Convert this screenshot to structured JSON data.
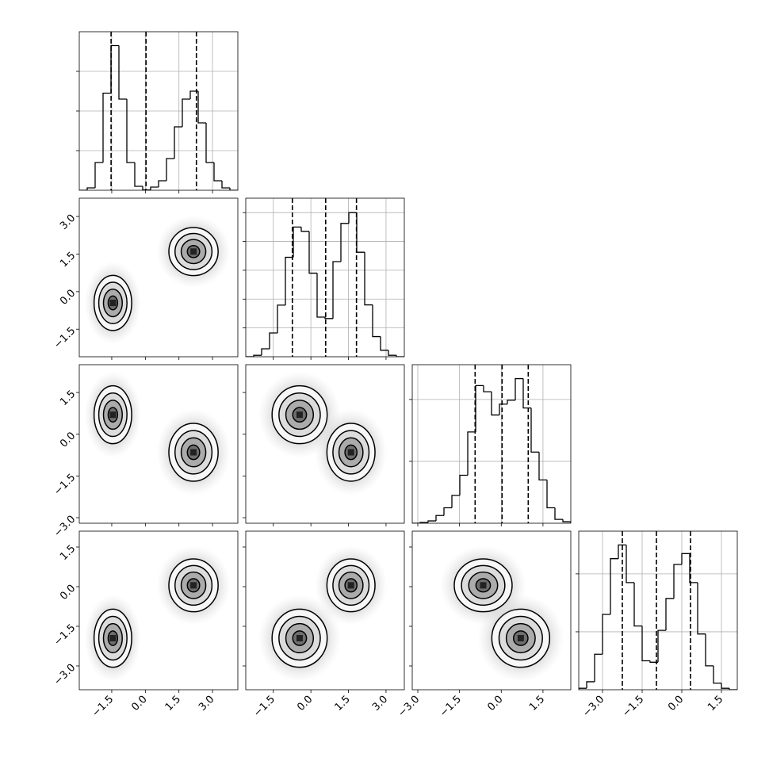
{
  "chart_data": [
    {
      "type": "histogram",
      "bins": [
        -2.95,
        -2.596,
        -2.242,
        -1.888,
        -1.534,
        -1.18,
        -0.826,
        -0.472,
        -0.118,
        0.236,
        0.59,
        0.944,
        1.298,
        1.652,
        2.006,
        2.36,
        2.714,
        3.068,
        3.422,
        3.776,
        4.13
      ],
      "values": [
        0,
        12,
        140,
        490,
        730,
        460,
        140,
        20,
        2,
        16,
        48,
        160,
        320,
        460,
        500,
        340,
        140,
        48,
        12,
        0
      ],
      "quantiles": [
        -1.53,
        0.03,
        2.28
      ],
      "xlim": [
        -2.95,
        4.13
      ],
      "xticks": [
        -1.5,
        0,
        1.5,
        3
      ],
      "ylim": [
        0,
        800
      ],
      "yticks": [
        200,
        400,
        600
      ],
      "grid": true,
      "color": "#000000"
    },
    {
      "type": "contour",
      "xlim": [
        -2.95,
        4.13
      ],
      "ylim": [
        -2.6,
        3.73
      ],
      "xticks": [
        -1.5,
        0,
        1.5,
        3
      ],
      "yticks": [
        {
          "value": -1.5,
          "label": "−1.5"
        },
        {
          "value": 0,
          "label": "0.0"
        },
        {
          "value": 1.5,
          "label": "1.5"
        },
        {
          "value": 3,
          "label": "3.0"
        }
      ],
      "levels": [
        2,
        1.5,
        1,
        0.5
      ],
      "clusters": [
        {
          "x": -1.45,
          "sx": 0.42,
          "y": -0.45,
          "sy": 0.55
        },
        {
          "x": 2.15,
          "sx": 0.55,
          "y": 1.6,
          "sy": 0.48
        }
      ],
      "grid": false
    },
    {
      "type": "histogram",
      "bins": [
        -2.6,
        -2.2835,
        -1.967,
        -1.6505,
        -1.334,
        -1.0175,
        -0.701,
        -0.3845,
        -0.068,
        0.2485,
        0.565,
        0.8815,
        1.198,
        1.5145,
        1.831,
        2.1475,
        2.464,
        2.7805,
        3.097,
        3.4135,
        3.73
      ],
      "values": [
        0,
        10,
        55,
        165,
        358,
        690,
        900,
        870,
        580,
        275,
        265,
        660,
        925,
        1000,
        725,
        360,
        140,
        45,
        10,
        0
      ],
      "quantiles": [
        -0.74,
        0.59,
        1.82
      ],
      "xlim": [
        -2.6,
        3.73
      ],
      "xticks": [
        -1.5,
        0,
        1.5,
        3
      ],
      "ylim": [
        0,
        1100
      ],
      "yticks": [
        200,
        400,
        600,
        800,
        1000
      ],
      "grid": true,
      "color": "#000000"
    },
    {
      "type": "contour",
      "xlim": [
        -2.95,
        4.13
      ],
      "ylim": [
        -3.2,
        2.5
      ],
      "xticks": [
        -1.5,
        0,
        1.5,
        3
      ],
      "yticks": [
        {
          "value": -3,
          "label": "−3.0"
        },
        {
          "value": -1.5,
          "label": "−1.5"
        },
        {
          "value": 0,
          "label": "0.0"
        },
        {
          "value": 1.5,
          "label": "1.5"
        }
      ],
      "levels": [
        2,
        1.5,
        1,
        0.5
      ],
      "clusters": [
        {
          "x": -1.45,
          "sx": 0.42,
          "y": 0.7,
          "sy": 0.52
        },
        {
          "x": 2.15,
          "sx": 0.55,
          "y": -0.65,
          "sy": 0.52
        }
      ],
      "grid": false
    },
    {
      "type": "contour",
      "xlim": [
        -2.6,
        3.73
      ],
      "ylim": [
        -3.2,
        2.5
      ],
      "xticks": [
        -1.5,
        0,
        1.5,
        3
      ],
      "yticks": [
        -3,
        -1.5,
        0,
        1.5
      ],
      "levels": [
        2,
        1.5,
        1,
        0.5
      ],
      "clusters": [
        {
          "x": -0.45,
          "sx": 0.55,
          "y": 0.7,
          "sy": 0.52
        },
        {
          "x": 1.6,
          "sx": 0.48,
          "y": -0.65,
          "sy": 0.52
        }
      ],
      "grid": false
    },
    {
      "type": "histogram",
      "bins": [
        -3.2,
        -2.915,
        -2.63,
        -2.345,
        -2.06,
        -1.775,
        -1.49,
        -1.205,
        -0.92,
        -0.635,
        -0.35,
        -0.065,
        0.22,
        0.505,
        0.79,
        1.075,
        1.36,
        1.645,
        1.93,
        2.215,
        2.5
      ],
      "values": [
        0,
        5,
        15,
        50,
        100,
        180,
        310,
        590,
        890,
        850,
        700,
        770,
        795,
        935,
        745,
        460,
        280,
        100,
        25,
        10
      ],
      "quantiles": [
        -0.94,
        0.03,
        0.97
      ],
      "xlim": [
        -3.2,
        2.5
      ],
      "xticks": [
        -3,
        -1.5,
        0,
        1.5
      ],
      "ylim": [
        0,
        1025
      ],
      "yticks": [
        400,
        800
      ],
      "grid": true,
      "color": "#000000"
    },
    {
      "type": "contour",
      "xlim": [
        -2.95,
        4.13
      ],
      "ylim": [
        -3.9,
        2.1
      ],
      "xticks": [
        {
          "value": -1.5,
          "label": "−1.5"
        },
        {
          "value": 0,
          "label": "0.0"
        },
        {
          "value": 1.5,
          "label": "1.5"
        },
        {
          "value": 3,
          "label": "3.0"
        }
      ],
      "yticks": [
        {
          "value": -3,
          "label": "−3.0"
        },
        {
          "value": -1.5,
          "label": "−1.5"
        },
        {
          "value": 0,
          "label": "0.0"
        },
        {
          "value": 1.5,
          "label": "1.5"
        }
      ],
      "levels": [
        2,
        1.5,
        1,
        0.5
      ],
      "clusters": [
        {
          "x": -1.45,
          "sx": 0.42,
          "y": -1.95,
          "sy": 0.55
        },
        {
          "x": 2.15,
          "sx": 0.55,
          "y": 0.05,
          "sy": 0.5
        }
      ],
      "grid": false
    },
    {
      "type": "contour",
      "xlim": [
        -2.6,
        3.73
      ],
      "ylim": [
        -3.9,
        2.1
      ],
      "xticks": [
        {
          "value": -1.5,
          "label": "−1.5"
        },
        {
          "value": 0,
          "label": "0.0"
        },
        {
          "value": 1.5,
          "label": "1.5"
        },
        {
          "value": 3,
          "label": "3.0"
        }
      ],
      "yticks": [
        -3,
        -1.5,
        0,
        1.5
      ],
      "levels": [
        2,
        1.5,
        1,
        0.5
      ],
      "clusters": [
        {
          "x": -0.45,
          "sx": 0.55,
          "y": -1.95,
          "sy": 0.55
        },
        {
          "x": 1.6,
          "sx": 0.48,
          "y": 0.05,
          "sy": 0.5
        }
      ],
      "grid": false
    },
    {
      "type": "contour",
      "xlim": [
        -3.2,
        2.5
      ],
      "ylim": [
        -3.9,
        2.1
      ],
      "xticks": [
        {
          "value": -3,
          "label": "−3.0"
        },
        {
          "value": -1.5,
          "label": "−1.5"
        },
        {
          "value": 0,
          "label": "0.0"
        },
        {
          "value": 1.5,
          "label": "1.5"
        }
      ],
      "yticks": [
        -3,
        -1.5,
        0,
        1.5
      ],
      "levels": [
        2,
        1.5,
        1,
        0.5
      ],
      "clusters": [
        {
          "x": 0.7,
          "sx": 0.52,
          "y": -1.95,
          "sy": 0.55
        },
        {
          "x": -0.65,
          "sx": 0.52,
          "y": 0.05,
          "sy": 0.5
        }
      ],
      "grid": false
    },
    {
      "type": "histogram",
      "bins": [
        -3.9,
        -3.6,
        -3.3,
        -3.0,
        -2.7,
        -2.4,
        -2.1,
        -1.8,
        -1.5,
        -1.2,
        -0.9,
        -0.6,
        -0.3,
        0.0,
        0.3,
        0.6,
        0.9,
        1.2,
        1.5,
        1.8,
        2.1
      ],
      "values": [
        10,
        55,
        245,
        520,
        905,
        1000,
        740,
        440,
        200,
        190,
        410,
        630,
        865,
        940,
        740,
        385,
        165,
        45,
        10,
        0
      ],
      "quantiles": [
        -2.25,
        -0.96,
        0.33
      ],
      "xlim": [
        -3.9,
        2.1
      ],
      "xticks": [
        {
          "value": -3,
          "label": "−3.0"
        },
        {
          "value": -1.5,
          "label": "−1.5"
        },
        {
          "value": 0,
          "label": "0.0"
        },
        {
          "value": 1.5,
          "label": "1.5"
        }
      ],
      "ylim": [
        0,
        1095
      ],
      "yticks": [
        400,
        800
      ],
      "grid": true,
      "color": "#000000"
    }
  ]
}
